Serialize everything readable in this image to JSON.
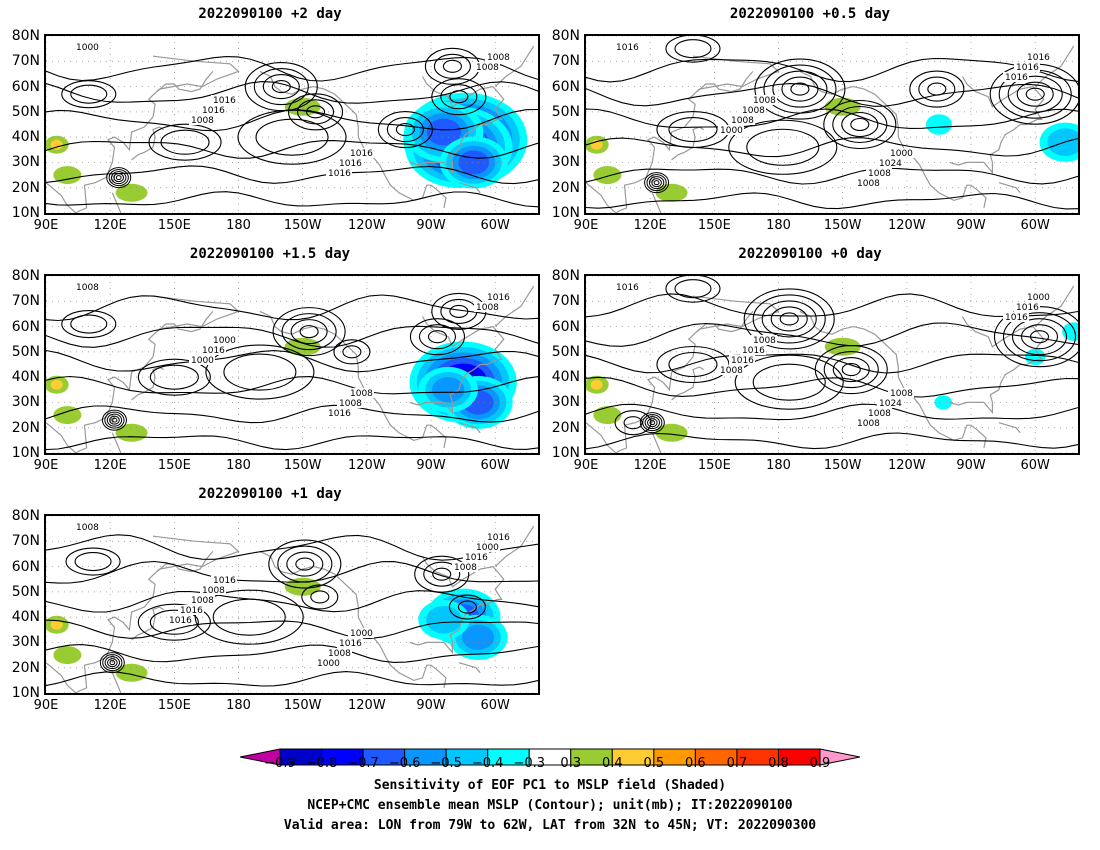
{
  "panels": [
    {
      "title": "2022090100 +2 day",
      "anomaly_strength": 1.0,
      "contour_labels": [
        "1000",
        "1016",
        "1016",
        "1008",
        "1016",
        "1016",
        "1008",
        "1008",
        "1016"
      ]
    },
    {
      "title": "2022090100 +0.5 day",
      "anomaly_strength": 0.5,
      "contour_labels": [
        "1016",
        "1008",
        "1000",
        "1016",
        "1008",
        "1024",
        "1016",
        "1008",
        "1008",
        "1016",
        "1000",
        "1008"
      ]
    },
    {
      "title": "2022090100 +1.5 day",
      "anomaly_strength": 0.85,
      "contour_labels": [
        "1008",
        "1000",
        "1008",
        "1016",
        "1016",
        "1008",
        "1008",
        "1000",
        "1016"
      ]
    },
    {
      "title": "2022090100 +0 day",
      "anomaly_strength": 0.25,
      "contour_labels": [
        "1016",
        "1008",
        "1008",
        "1000",
        "1016",
        "1024",
        "1016",
        "1016",
        "1008",
        "1016",
        "1008",
        "1008"
      ]
    },
    {
      "title": "2022090100 +1 day",
      "anomaly_strength": 0.7,
      "contour_labels": [
        "1008",
        "1016",
        "1000",
        "1016",
        "1008",
        "1016",
        "1000",
        "1008",
        "1008",
        "1016",
        "1016",
        "1000",
        "1008",
        "1016"
      ]
    }
  ],
  "axes": {
    "lat_labels": [
      "80N",
      "70N",
      "60N",
      "50N",
      "40N",
      "30N",
      "20N",
      "10N"
    ],
    "lon_labels": [
      "90E",
      "120E",
      "150E",
      "180",
      "150W",
      "120W",
      "90W",
      "60W"
    ],
    "lon_range": [
      90,
      320
    ],
    "lat_range": [
      10,
      80
    ]
  },
  "colorbar": {
    "tick_labels": [
      "−0.9",
      "−0.8",
      "−0.7",
      "−0.6",
      "−0.5",
      "−0.4",
      "−0.3",
      "0.3",
      "0.4",
      "0.5",
      "0.6",
      "0.7",
      "0.8",
      "0.9"
    ],
    "colors": [
      "#c000a0",
      "#0000c8",
      "#0000ff",
      "#1e5aff",
      "#0a96ff",
      "#00c8ff",
      "#00ffff",
      "#ffffff",
      "#99cc33",
      "#ffcc33",
      "#ff9900",
      "#ff6600",
      "#ff3300",
      "#ff0000",
      "#ff99cc"
    ]
  },
  "caption": {
    "line1": "Sensitivity of EOF PC1 to MSLP field (Shaded)",
    "line2": "NCEP+CMC ensemble mean MSLP (Contour); unit(mb); IT:2022090100",
    "line3": "Valid area: LON from 79W to 62W, LAT from 32N to 45N; VT: 2022090300"
  },
  "colors": {
    "contour": "#000000",
    "coast": "#999999",
    "grid": "#888888"
  }
}
